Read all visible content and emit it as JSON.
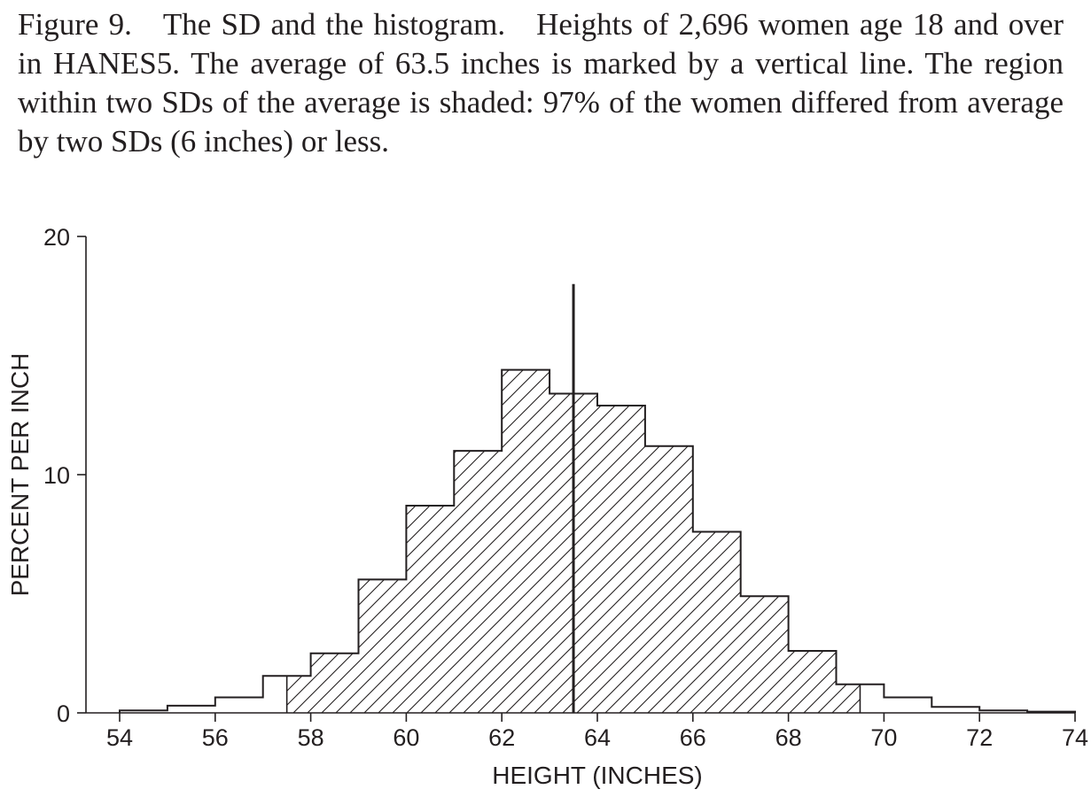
{
  "caption": {
    "figure_label": "Figure 9.",
    "title": "The SD and the histogram.",
    "text": "Heights of 2,696 women age 18 and over in HANES5. The average of 63.5 inches is marked by a vertical line. The region within two SDs of the average is shaded: 97% of the women differed from average by two SDs (6 inches) or less."
  },
  "chart_data": {
    "type": "bar",
    "subtype": "histogram",
    "xlabel": "HEIGHT (INCHES)",
    "ylabel": "PERCENT PER INCH",
    "xlim": [
      54,
      74
    ],
    "ylim": [
      0,
      20
    ],
    "xticks": [
      54,
      56,
      58,
      60,
      62,
      64,
      66,
      68,
      70,
      72,
      74
    ],
    "yticks": [
      0,
      10,
      20
    ],
    "bins": [
      {
        "from": 54,
        "to": 55,
        "value": 0.1
      },
      {
        "from": 55,
        "to": 56,
        "value": 0.3
      },
      {
        "from": 56,
        "to": 57,
        "value": 0.65
      },
      {
        "from": 57,
        "to": 58,
        "value": 1.55
      },
      {
        "from": 58,
        "to": 59,
        "value": 2.5
      },
      {
        "from": 59,
        "to": 60,
        "value": 5.6
      },
      {
        "from": 60,
        "to": 61,
        "value": 8.7
      },
      {
        "from": 61,
        "to": 62,
        "value": 11.0
      },
      {
        "from": 62,
        "to": 63,
        "value": 14.4
      },
      {
        "from": 63,
        "to": 64,
        "value": 13.4
      },
      {
        "from": 64,
        "to": 65,
        "value": 12.9
      },
      {
        "from": 65,
        "to": 66,
        "value": 11.2
      },
      {
        "from": 66,
        "to": 67,
        "value": 7.6
      },
      {
        "from": 67,
        "to": 68,
        "value": 4.9
      },
      {
        "from": 68,
        "to": 69,
        "value": 2.6
      },
      {
        "from": 69,
        "to": 70,
        "value": 1.2
      },
      {
        "from": 70,
        "to": 71,
        "value": 0.65
      },
      {
        "from": 71,
        "to": 72,
        "value": 0.25
      },
      {
        "from": 72,
        "to": 73,
        "value": 0.1
      },
      {
        "from": 73,
        "to": 74,
        "value": 0.05
      }
    ],
    "average": 63.5,
    "average_line_top": 18,
    "shaded_range": [
      57.5,
      69.5
    ],
    "grid": false,
    "colors": {
      "ink": "#231f20",
      "background": "#ffffff"
    }
  }
}
